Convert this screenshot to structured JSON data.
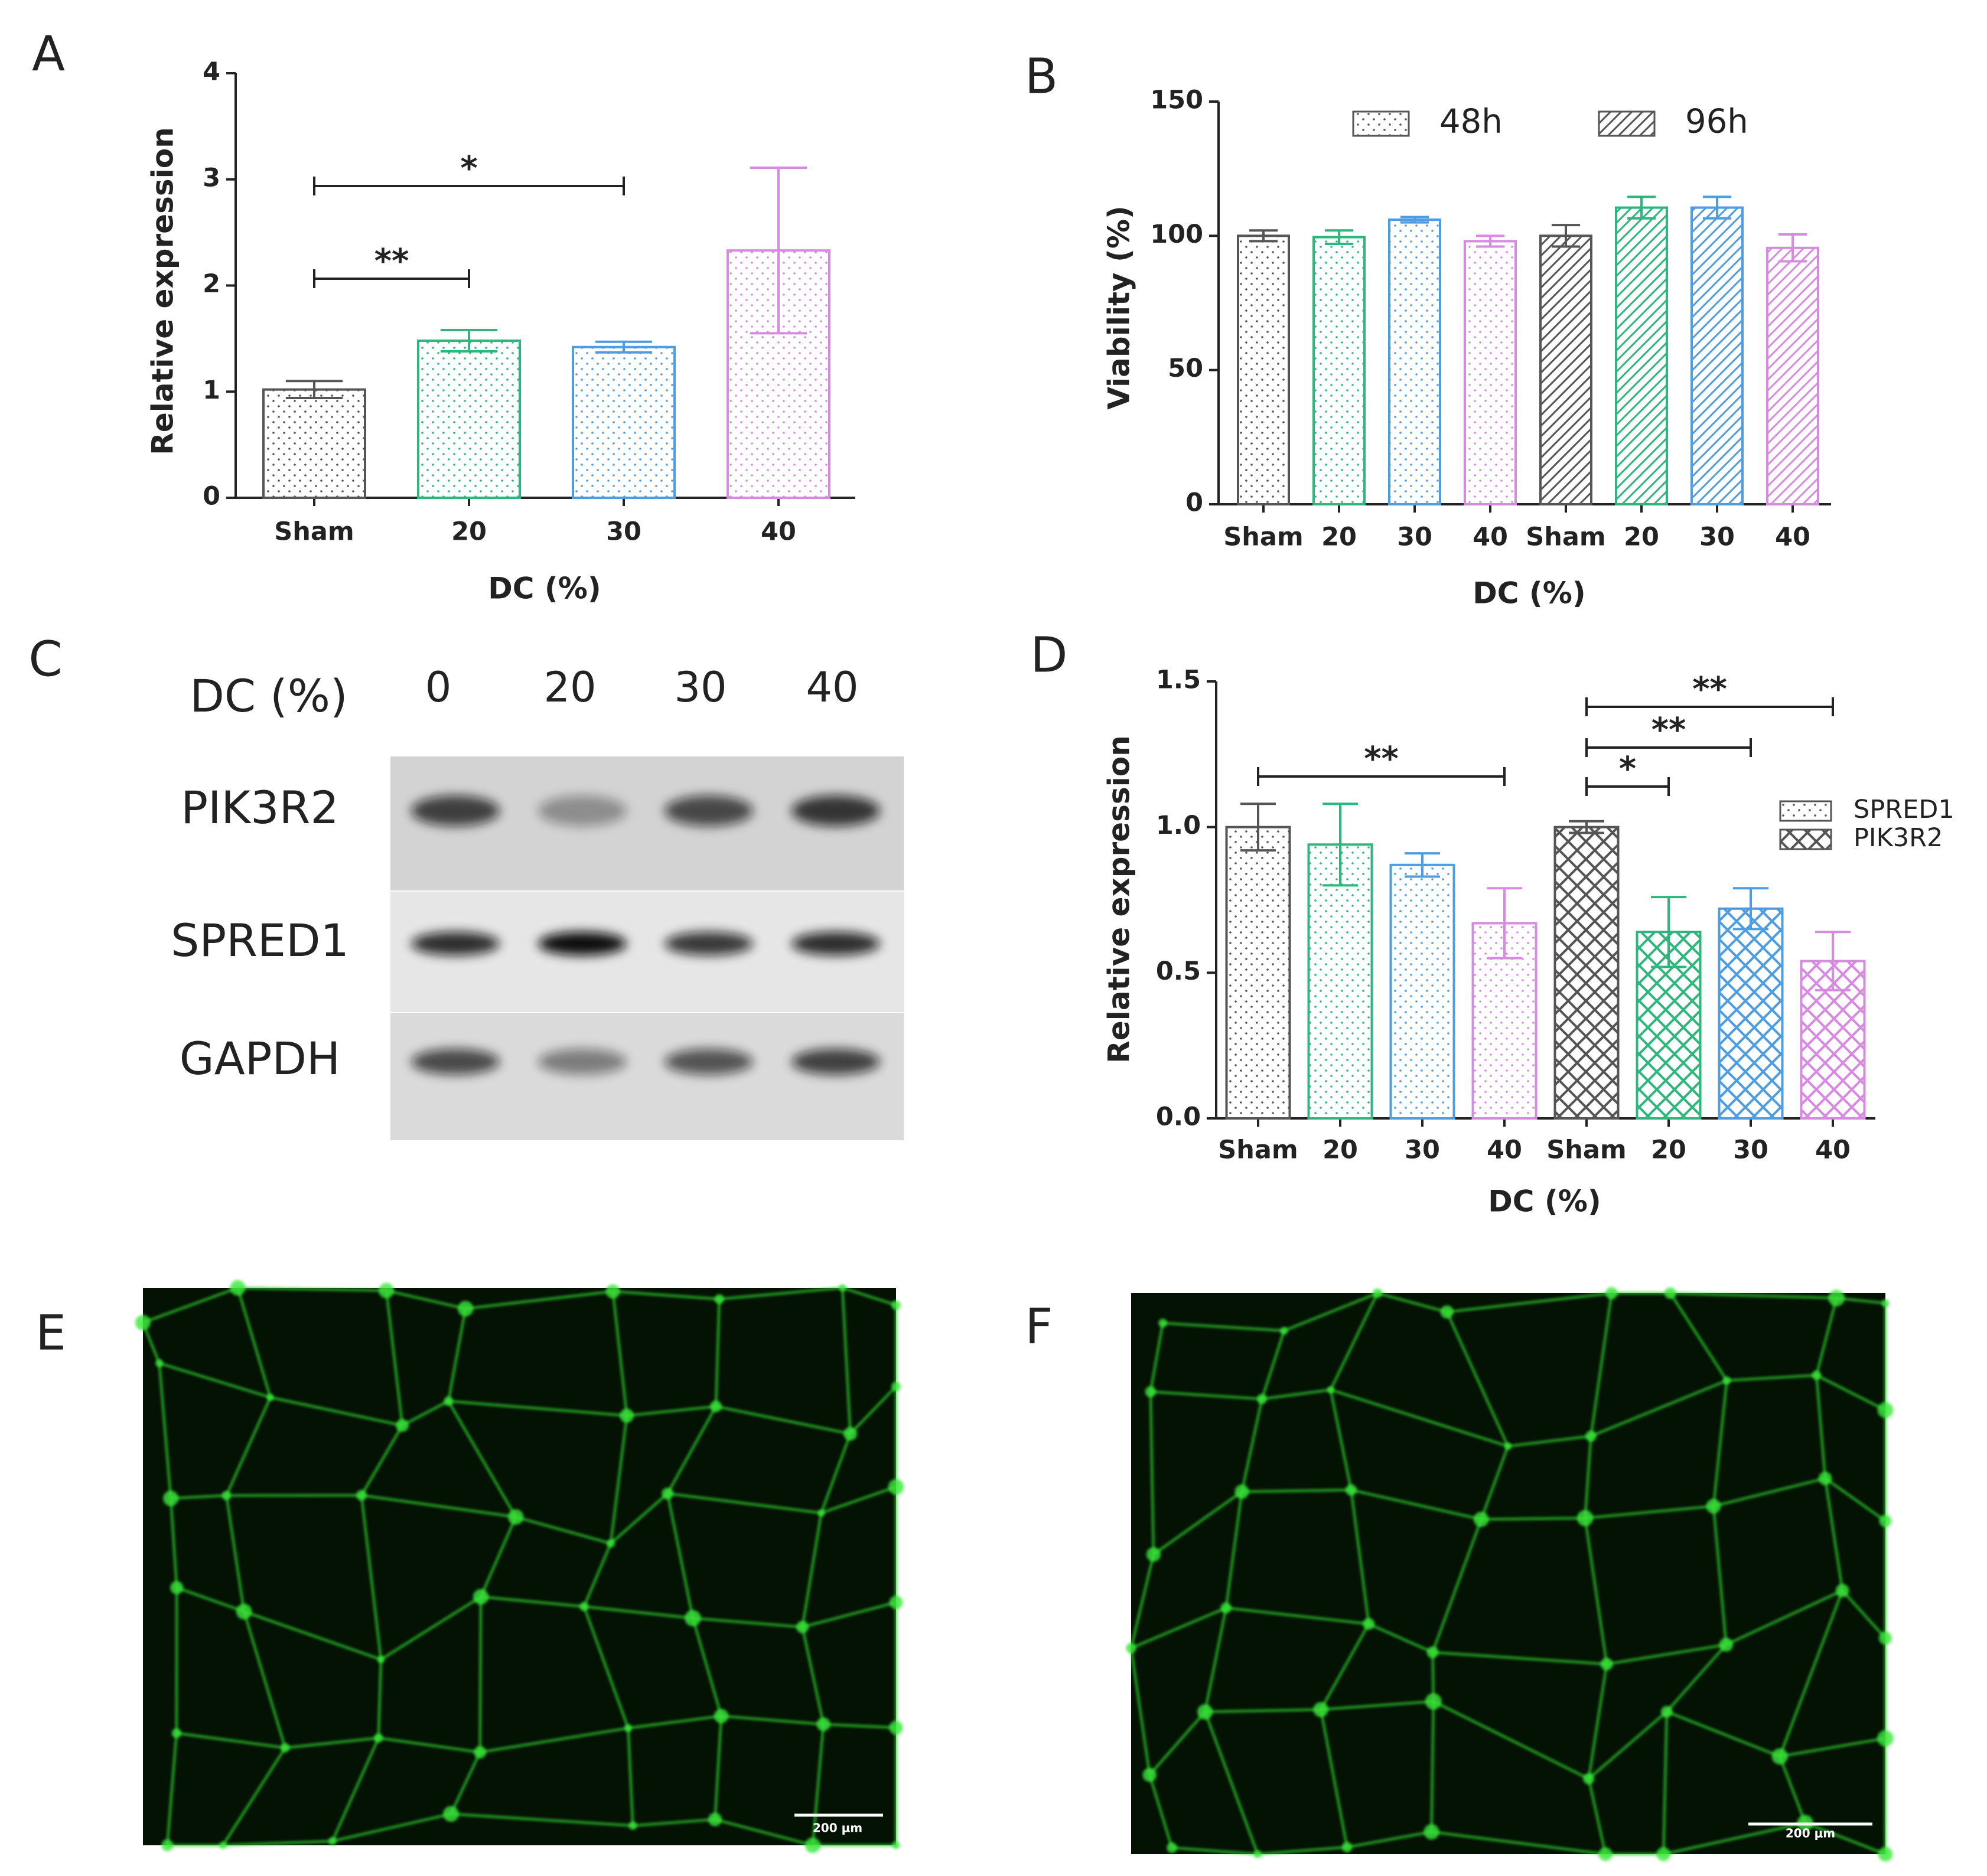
{
  "chart_data": [
    {
      "type": "bar",
      "panel": "A",
      "xlabel": "DC  (%)",
      "ylabel": "Relative expression",
      "categories": [
        "Sham",
        "20",
        "30",
        "40"
      ],
      "values": [
        1.02,
        1.48,
        1.42,
        2.33
      ],
      "errors": [
        0.08,
        0.1,
        0.05,
        0.78
      ],
      "pattern": "dots",
      "colors": [
        "#555555",
        "#2fb67c",
        "#4d9de0",
        "#d68ae0"
      ],
      "ylim": [
        0,
        4
      ],
      "yticks": [
        0,
        1,
        2,
        3,
        4
      ],
      "brackets": [
        {
          "from": 0,
          "to": 2,
          "label": "*"
        },
        {
          "from": 0,
          "to": 1,
          "label": "**"
        }
      ]
    },
    {
      "type": "bar",
      "panel": "B",
      "xlabel": "DC  (%)",
      "ylabel": "Viability (%)",
      "categories": [
        "Sham",
        "20",
        "30",
        "40"
      ],
      "colors": [
        "#555555",
        "#2fb67c",
        "#4d9de0",
        "#d68ae0"
      ],
      "series": [
        {
          "name": "48h",
          "pattern": "dots",
          "values": [
            100,
            99.5,
            106,
            98
          ],
          "errors": [
            2,
            2.5,
            1,
            2
          ]
        },
        {
          "name": "96h",
          "pattern": "hatch",
          "values": [
            100,
            110.5,
            110.5,
            95.5
          ],
          "errors": [
            4,
            4,
            4,
            5
          ]
        }
      ],
      "legend": "top",
      "ylim": [
        0,
        150
      ],
      "yticks": [
        0,
        50,
        100,
        150
      ],
      "brackets": []
    },
    {
      "type": "bar",
      "panel": "D",
      "xlabel": "DC  (%)",
      "ylabel": "Relative expression",
      "categories": [
        "Sham",
        "20",
        "30",
        "40"
      ],
      "colors": [
        "#555555",
        "#2fb67c",
        "#4d9de0",
        "#d68ae0"
      ],
      "series": [
        {
          "name": "SPRED1",
          "pattern": "dots",
          "values": [
            1.0,
            0.94,
            0.87,
            0.67
          ],
          "errors": [
            0.08,
            0.14,
            0.04,
            0.12
          ]
        },
        {
          "name": "PIK3R2",
          "pattern": "cross",
          "values": [
            1.0,
            0.64,
            0.72,
            0.54
          ],
          "errors": [
            0.02,
            0.12,
            0.07,
            0.1
          ]
        }
      ],
      "legend": "right",
      "ylim": [
        0,
        1.5
      ],
      "yticks": [
        {
          "value": 0,
          "label": "0.0"
        },
        0.5,
        {
          "value": 1,
          "label": "1.0"
        },
        1.5
      ],
      "brackets": [
        {
          "from": 0,
          "to": 3,
          "label": "**"
        },
        {
          "from": 4,
          "to": 5,
          "label": "*"
        },
        {
          "from": 4,
          "to": 6,
          "label": "**"
        },
        {
          "from": 4,
          "to": 7,
          "label": "**"
        }
      ]
    }
  ],
  "blot": {
    "panel": "C",
    "axis_label": "DC (%)",
    "lanes": [
      "0",
      "20",
      "30",
      "40"
    ],
    "rows": [
      "PIK3R2",
      "SPRED1",
      "GAPDH"
    ]
  },
  "micrographs": [
    {
      "panel": "E",
      "scale_bar": "200 μm"
    },
    {
      "panel": "F",
      "scale_bar": "200 μm"
    }
  ]
}
